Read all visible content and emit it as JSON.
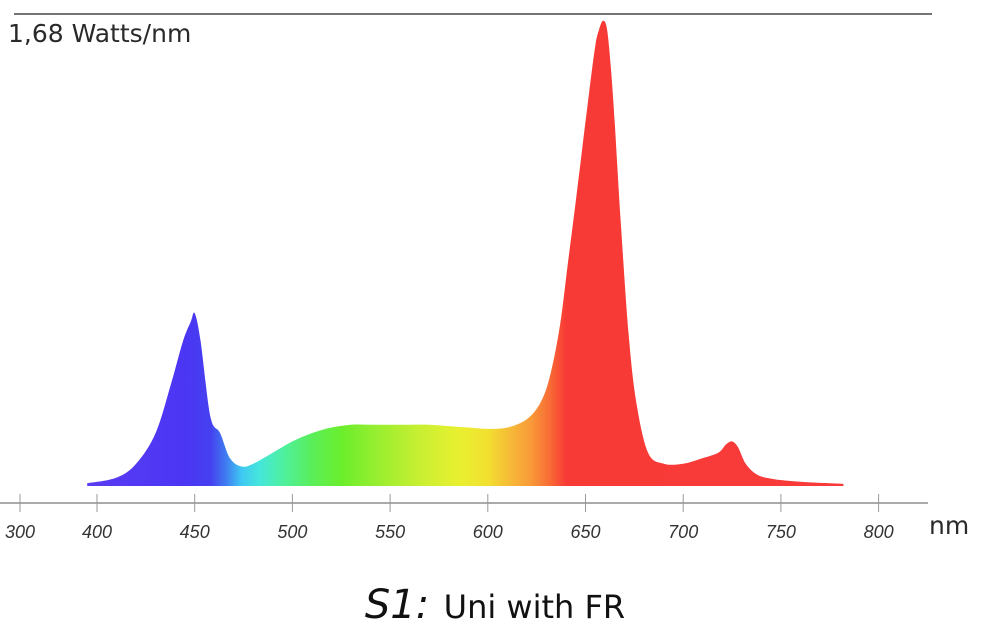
{
  "chart_data": {
    "type": "area",
    "ymax_label": "1,68 Watts/nm",
    "x_unit": "nm",
    "caption": {
      "id": "S1:",
      "text": "Uni with FR"
    },
    "xlim": [
      300,
      800
    ],
    "ylim": [
      0,
      1.68
    ],
    "xticks": [
      300,
      400,
      450,
      500,
      550,
      600,
      650,
      700,
      750,
      800
    ],
    "grid": false,
    "fill": "visible-spectrum gradient",
    "x": [
      395,
      410,
      420,
      430,
      438,
      444,
      448,
      450,
      453,
      458,
      463,
      468,
      474,
      480,
      490,
      500,
      510,
      520,
      530,
      540,
      550,
      560,
      570,
      580,
      590,
      600,
      610,
      620,
      627,
      632,
      637,
      641,
      645,
      649,
      652,
      655,
      657,
      659,
      661,
      663,
      665,
      668,
      672,
      676,
      682,
      690,
      700,
      710,
      718,
      722,
      725,
      728,
      732,
      738,
      746,
      755,
      765,
      775,
      782
    ],
    "y": [
      0.01,
      0.03,
      0.08,
      0.19,
      0.37,
      0.52,
      0.59,
      0.62,
      0.52,
      0.25,
      0.19,
      0.1,
      0.07,
      0.08,
      0.12,
      0.16,
      0.19,
      0.21,
      0.22,
      0.22,
      0.22,
      0.22,
      0.22,
      0.215,
      0.21,
      0.205,
      0.21,
      0.24,
      0.3,
      0.4,
      0.58,
      0.8,
      1.02,
      1.25,
      1.42,
      1.58,
      1.64,
      1.67,
      1.64,
      1.5,
      1.3,
      0.95,
      0.55,
      0.3,
      0.12,
      0.08,
      0.08,
      0.1,
      0.12,
      0.15,
      0.16,
      0.14,
      0.08,
      0.04,
      0.025,
      0.018,
      0.013,
      0.01,
      0.008
    ]
  }
}
